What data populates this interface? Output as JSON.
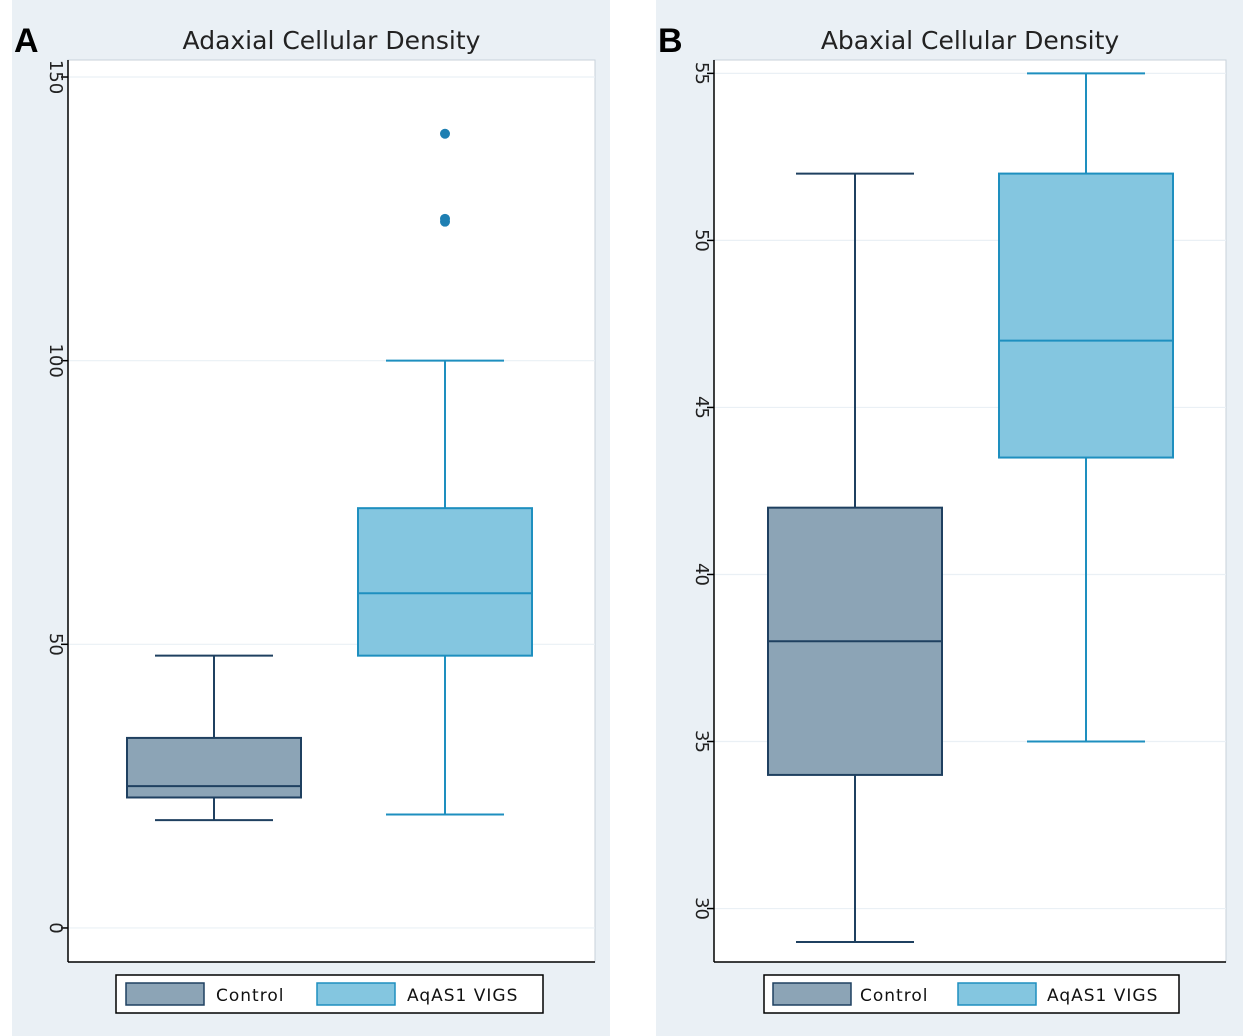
{
  "colors": {
    "panel_bg": "#eaf0f5",
    "plot_bg": "#ffffff",
    "gridline": "#eaf0f5",
    "axis": "#000000",
    "control_fill": "#8ca4b6",
    "control_stroke": "#1f4060",
    "vigs_fill": "#84c6e0",
    "vigs_stroke": "#1e8fbf",
    "outlier": "#1e7fb2"
  },
  "chart_data": [
    {
      "type": "box",
      "panel_label": "A",
      "title": "Adaxial Cellular Density",
      "xlabel": "",
      "ylabel": "",
      "ylim": [
        -6,
        153
      ],
      "y_ticks": [
        0,
        50,
        100,
        150
      ],
      "y_tick_labels": [
        "0",
        "50",
        "100",
        "150"
      ],
      "grid": true,
      "legend_position": "bottom",
      "series": [
        {
          "name": "Control",
          "color": "#8ca4b6",
          "stroke": "#1f4060",
          "whisker_low": 19,
          "q1": 23,
          "median": 25,
          "q3": 33.5,
          "whisker_high": 48,
          "outliers": []
        },
        {
          "name": "AqAS1 VIGS",
          "color": "#84c6e0",
          "stroke": "#1e8fbf",
          "whisker_low": 20,
          "q1": 48,
          "median": 59,
          "q3": 74,
          "whisker_high": 100,
          "outliers": [
            140,
            125,
            124.5
          ]
        }
      ]
    },
    {
      "type": "box",
      "panel_label": "B",
      "title": "Abaxial Cellular Density",
      "xlabel": "",
      "ylabel": "",
      "ylim": [
        28.4,
        55.4
      ],
      "y_ticks": [
        30,
        35,
        40,
        45,
        50,
        55
      ],
      "y_tick_labels": [
        "30",
        "35",
        "40",
        "45",
        "50",
        "55"
      ],
      "grid": true,
      "legend_position": "bottom",
      "series": [
        {
          "name": "Control",
          "color": "#8ca4b6",
          "stroke": "#1f4060",
          "whisker_low": 29,
          "q1": 34,
          "median": 38,
          "q3": 42,
          "whisker_high": 52,
          "outliers": []
        },
        {
          "name": "AqAS1 VIGS",
          "color": "#84c6e0",
          "stroke": "#1e8fbf",
          "whisker_low": 35,
          "q1": 43.5,
          "median": 47,
          "q3": 52,
          "whisker_high": 55,
          "outliers": []
        }
      ]
    }
  ]
}
